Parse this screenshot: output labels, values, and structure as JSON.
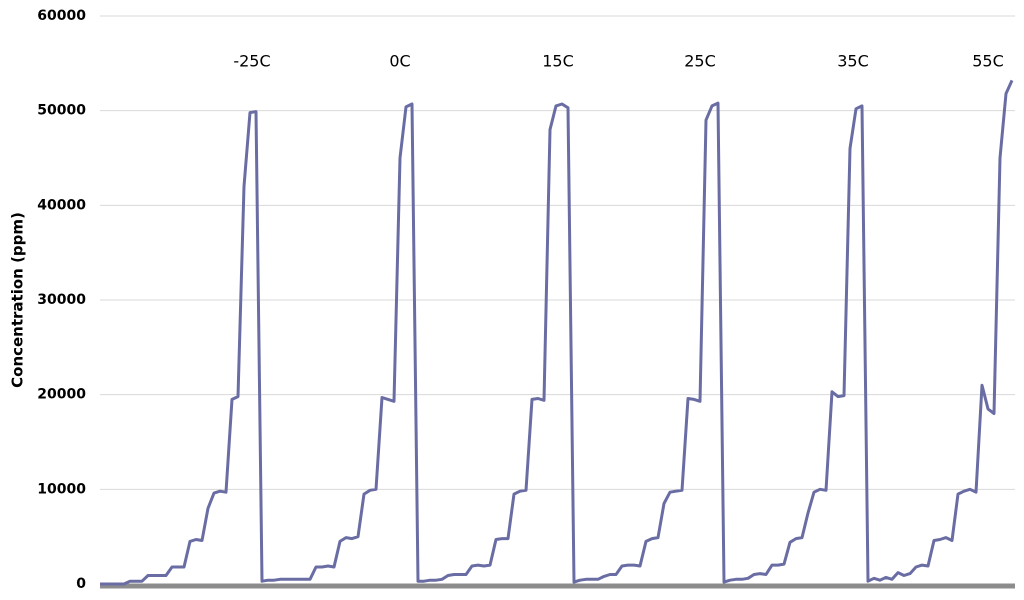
{
  "chart_data": {
    "type": "line",
    "y_label": "Concentration (ppm)",
    "annotations": [
      "-25C",
      "0C",
      "15C",
      "25C",
      "35C",
      "55C"
    ],
    "color": "#6a6da3",
    "grid": true,
    "ylim": [
      0,
      60000
    ],
    "yticks": [
      0,
      10000,
      20000,
      30000,
      40000,
      50000,
      60000
    ],
    "values": [
      0,
      0,
      0,
      0,
      0,
      300,
      300,
      300,
      900,
      900,
      900,
      900,
      1800,
      1800,
      1800,
      4500,
      4700,
      4600,
      8000,
      9600,
      9800,
      9700,
      19500,
      19800,
      42000,
      49800,
      49900,
      300,
      400,
      400,
      500,
      500,
      500,
      500,
      500,
      500,
      1800,
      1800,
      1900,
      1800,
      4500,
      4900,
      4800,
      5000,
      9500,
      9900,
      10000,
      19700,
      19500,
      19300,
      45000,
      50400,
      50700,
      300,
      300,
      400,
      400,
      500,
      900,
      1000,
      1000,
      1000,
      1900,
      2000,
      1900,
      2000,
      4700,
      4800,
      4800,
      9500,
      9800,
      9900,
      19500,
      19600,
      19400,
      48000,
      50500,
      50700,
      50300,
      200,
      400,
      500,
      500,
      500,
      800,
      1000,
      1000,
      1900,
      2000,
      2000,
      1900,
      4500,
      4800,
      4900,
      8500,
      9700,
      9800,
      9900,
      19600,
      19500,
      19300,
      49000,
      50500,
      50800,
      200,
      400,
      500,
      500,
      600,
      1000,
      1100,
      1000,
      2000,
      2000,
      2100,
      4400,
      4800,
      4900,
      7500,
      9700,
      10000,
      9900,
      20300,
      19800,
      19900,
      46000,
      50200,
      50500,
      300,
      600,
      400,
      700,
      500,
      1200,
      900,
      1100,
      1800,
      2000,
      1900,
      4600,
      4700,
      4900,
      4600,
      9500,
      9800,
      10000,
      9700,
      21000,
      18500,
      18000,
      45000,
      51800,
      53200
    ]
  }
}
